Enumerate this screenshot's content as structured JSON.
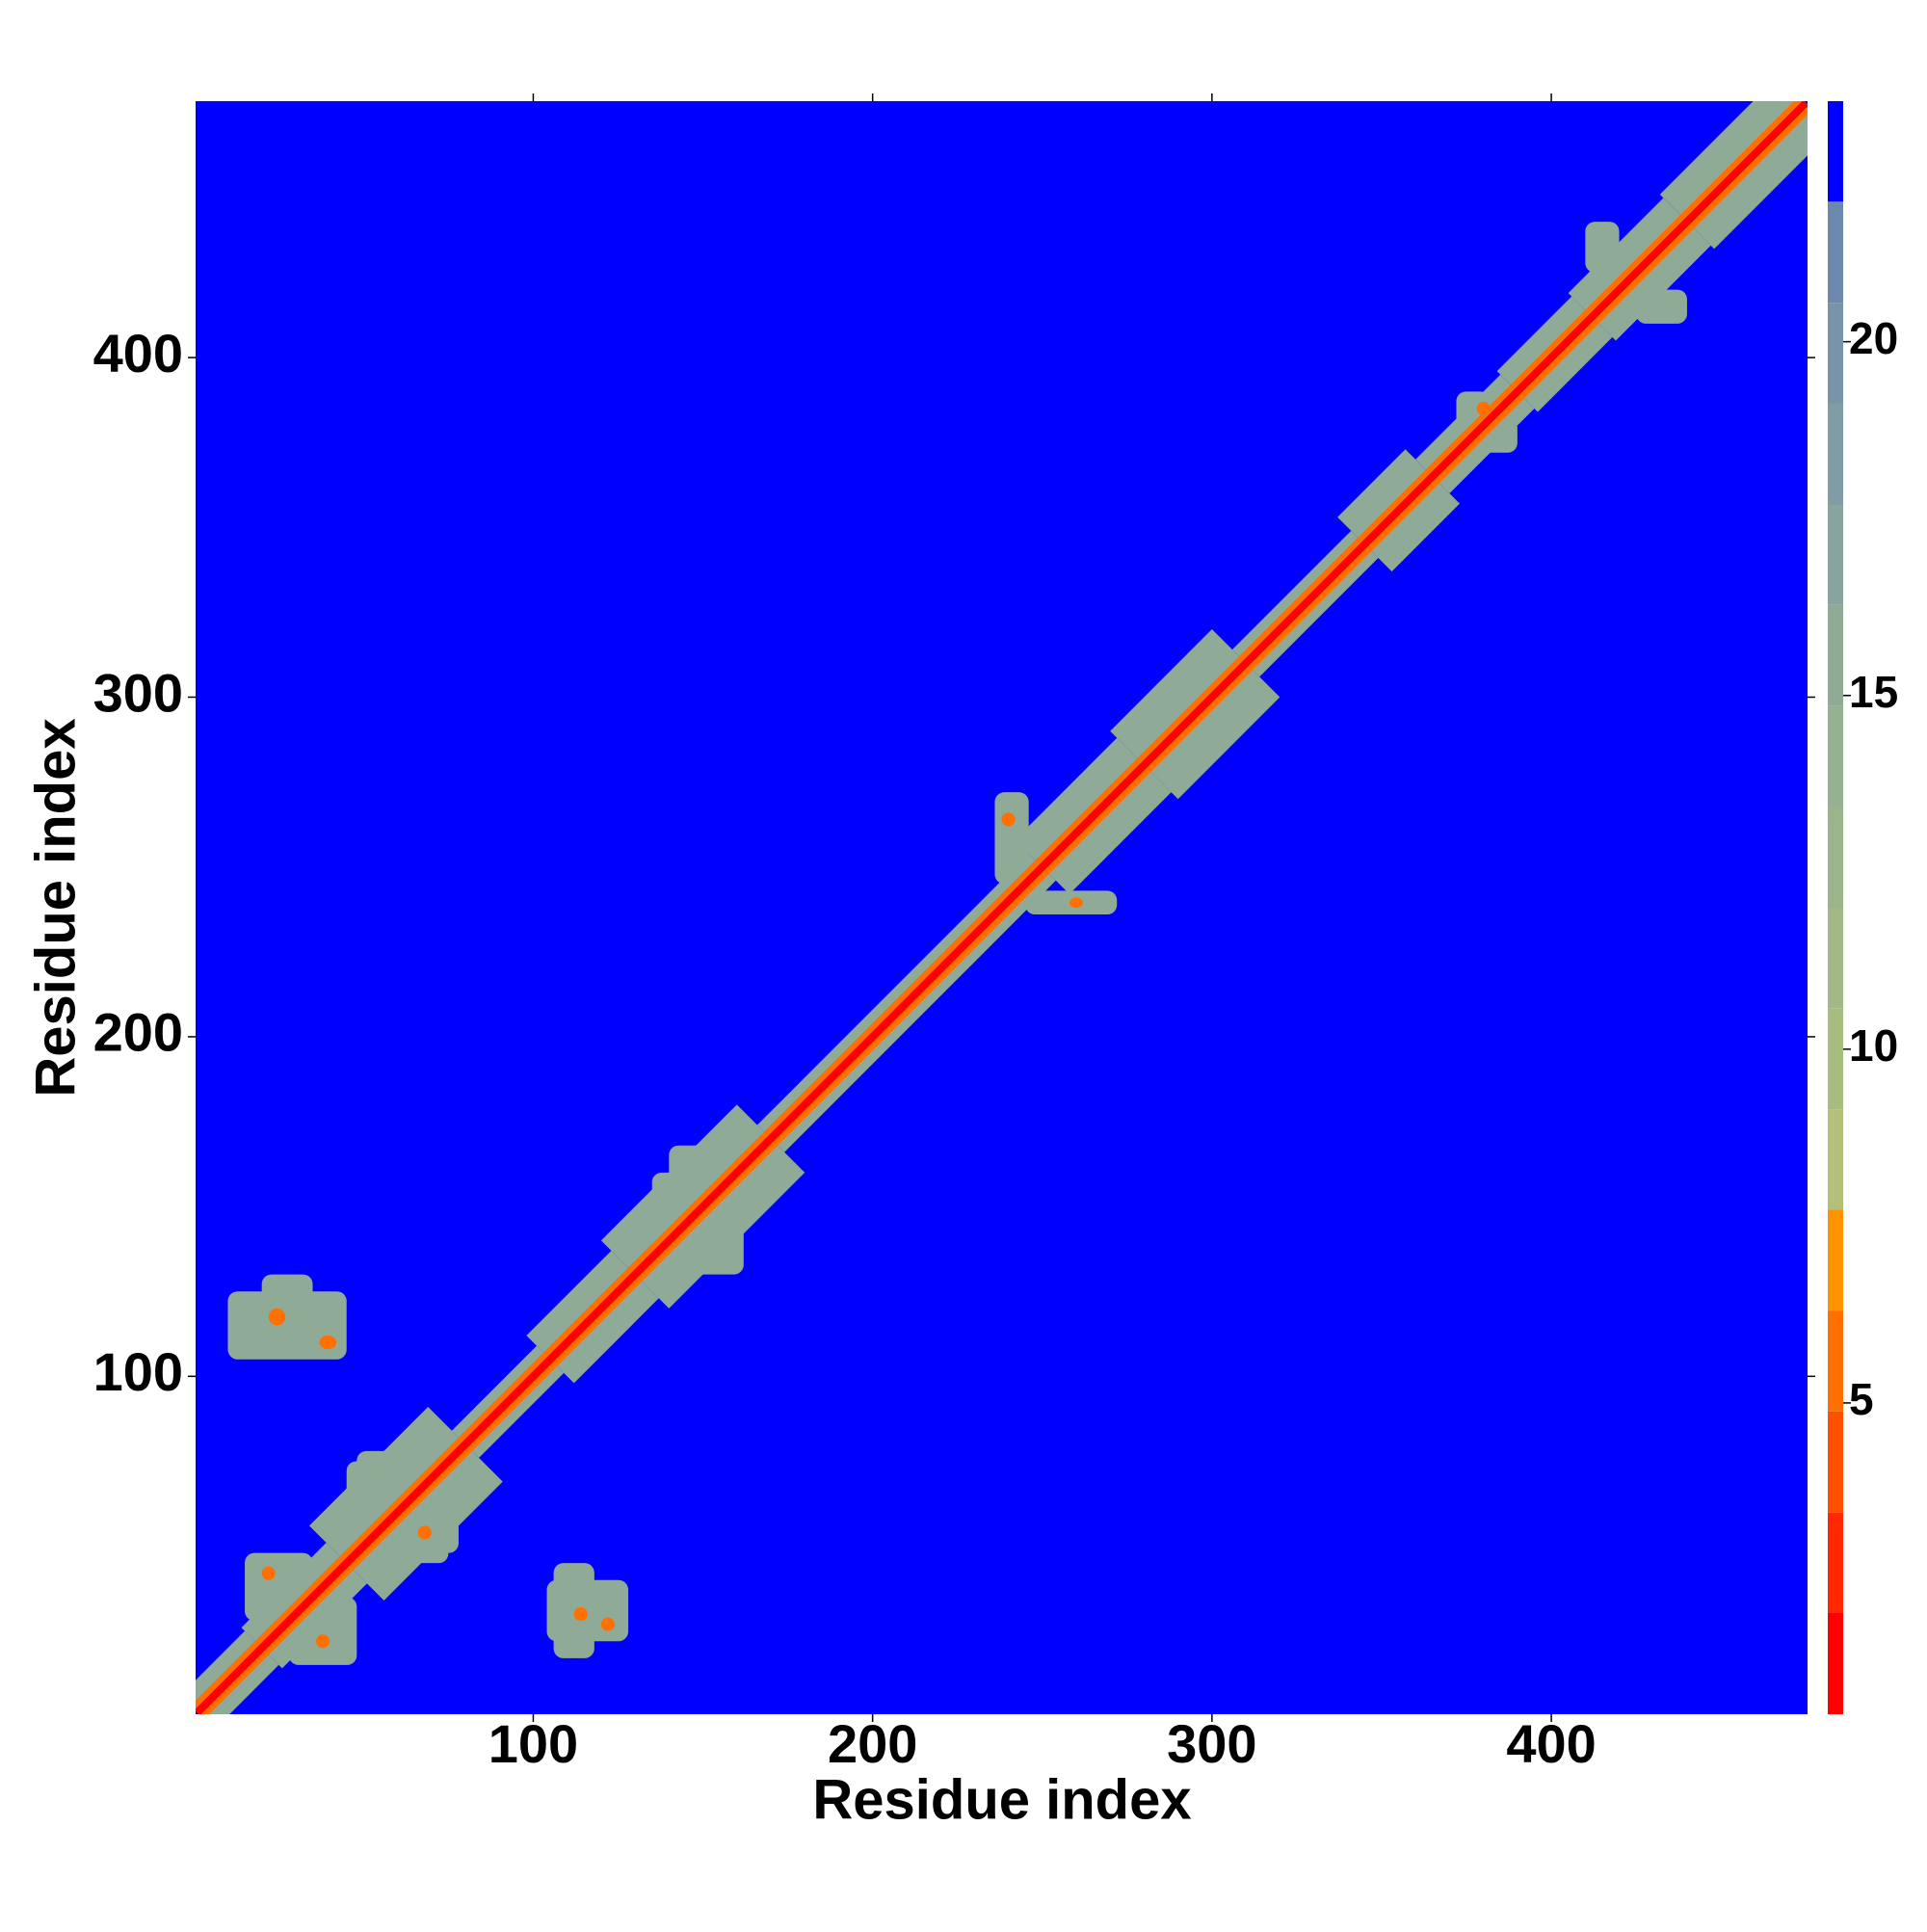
{
  "chart_data": {
    "type": "heatmap",
    "xlabel": "Residue index",
    "ylabel": "Residue index",
    "xlim": [
      0.5,
      475.5
    ],
    "ylim": [
      0.5,
      475.5
    ],
    "xticks": [
      100,
      200,
      300,
      400
    ],
    "yticks": [
      100,
      200,
      300,
      400
    ],
    "bands": [
      [
        1,
        20,
        10,
        16
      ],
      [
        20,
        45,
        12,
        16
      ],
      [
        45,
        80,
        22,
        16
      ],
      [
        80,
        105,
        8,
        16
      ],
      [
        105,
        130,
        14,
        16
      ],
      [
        130,
        170,
        20,
        16
      ],
      [
        170,
        250,
        8,
        16
      ],
      [
        250,
        280,
        16,
        16
      ],
      [
        280,
        310,
        20,
        16
      ],
      [
        310,
        345,
        8,
        16
      ],
      [
        345,
        365,
        16,
        16
      ],
      [
        365,
        390,
        10,
        16
      ],
      [
        390,
        412,
        12,
        16
      ],
      [
        412,
        440,
        14,
        16
      ],
      [
        440,
        475,
        16,
        16
      ],
      [
        1,
        475,
        4,
        6
      ],
      [
        1,
        475,
        1.6,
        2
      ]
    ],
    "patches": [
      [
        15,
        35,
        28,
        48,
        16
      ],
      [
        28,
        48,
        15,
        35,
        16
      ],
      [
        20,
        24,
        40,
        44,
        6
      ],
      [
        36,
        40,
        20,
        24,
        6
      ],
      [
        45,
        78,
        48,
        75,
        16
      ],
      [
        48,
        75,
        45,
        78,
        16
      ],
      [
        66,
        70,
        52,
        56,
        6
      ],
      [
        10,
        45,
        105,
        125,
        16
      ],
      [
        20,
        35,
        118,
        130,
        16
      ],
      [
        22,
        27,
        115,
        120,
        6
      ],
      [
        37,
        42,
        108,
        112,
        6
      ],
      [
        104,
        128,
        22,
        40,
        16
      ],
      [
        106,
        118,
        17,
        45,
        16
      ],
      [
        112,
        116,
        28,
        32,
        6
      ],
      [
        120,
        124,
        25,
        29,
        6
      ],
      [
        135,
        162,
        130,
        160,
        16
      ],
      [
        140,
        158,
        155,
        168,
        16
      ],
      [
        236,
        246,
        245,
        272,
        16
      ],
      [
        245,
        272,
        236,
        243,
        16
      ],
      [
        238,
        242,
        262,
        266,
        6
      ],
      [
        258,
        262,
        238,
        241,
        6
      ],
      [
        372,
        382,
        378,
        390,
        16
      ],
      [
        378,
        390,
        372,
        382,
        16
      ],
      [
        378,
        382,
        383,
        387,
        6
      ],
      [
        410,
        420,
        425,
        440,
        16
      ],
      [
        425,
        440,
        410,
        420,
        16
      ]
    ],
    "colorbar": {
      "lim": [
        0.6,
        23.4
      ],
      "ticks": [
        5,
        10,
        15,
        20
      ],
      "levels": [
        0.6,
        2.03,
        3.45,
        4.88,
        6.3,
        7.73,
        9.15,
        10.58,
        12,
        13.43,
        14.85,
        16.28,
        17.7,
        19.13,
        20.55,
        21.98,
        23.4
      ],
      "colors": [
        "#ff0000",
        "#ff2800",
        "#ff5000",
        "#ff7000",
        "#ff9400",
        "#b4c07a",
        "#a8bc80",
        "#a2b886",
        "#9cb48c",
        "#96b092",
        "#90aa98",
        "#88a49e",
        "#809ca4",
        "#7894a8",
        "#6c88ac",
        "#0000ff"
      ]
    }
  }
}
